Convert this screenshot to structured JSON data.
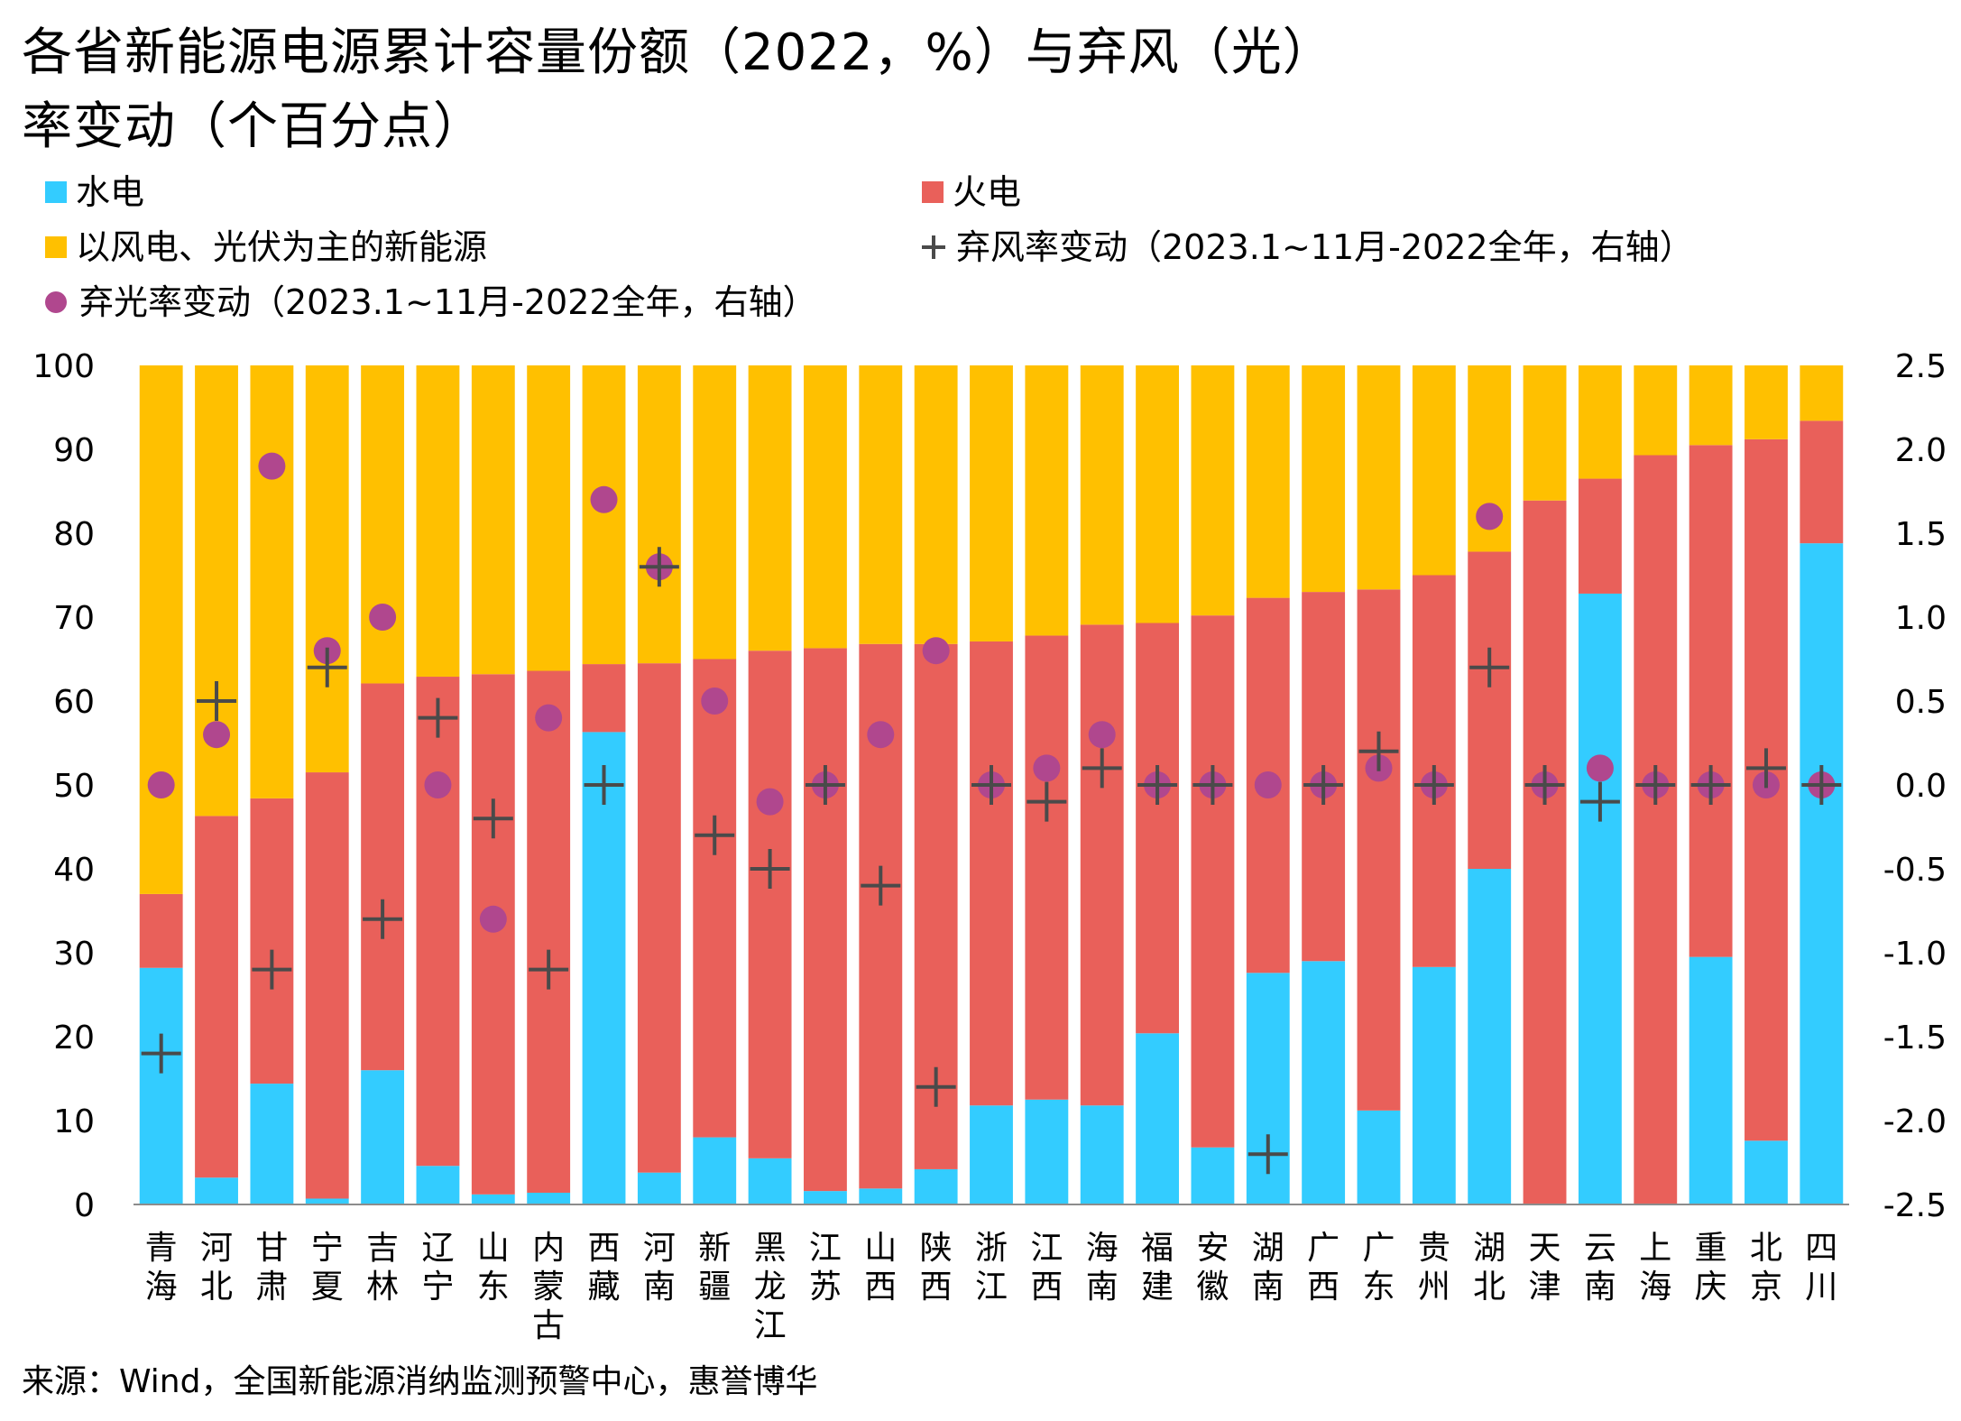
{
  "chart_data": {
    "type": "bar",
    "stacked": true,
    "title_line1": "各省新能源电源累计容量份额（2022，%）与弃风（光）",
    "title_line2": "率变动（个百分点）",
    "categories": [
      "青海",
      "河北",
      "甘肃",
      "宁夏",
      "吉林",
      "辽宁",
      "山东",
      "内蒙古",
      "西藏",
      "河南",
      "新疆",
      "黑龙江",
      "江苏",
      "山西",
      "陕西",
      "浙江",
      "江西",
      "海南",
      "福建",
      "安徽",
      "湖南",
      "广西",
      "广东",
      "贵州",
      "湖北",
      "天津",
      "云南",
      "上海",
      "重庆",
      "北京",
      "四川"
    ],
    "series": [
      {
        "name": "水电",
        "color": "#33CCFF",
        "values": [
          28.2,
          3.2,
          14.4,
          0.7,
          16.0,
          4.6,
          1.2,
          1.4,
          56.3,
          3.8,
          8.0,
          5.5,
          1.6,
          1.9,
          4.2,
          11.8,
          12.5,
          11.8,
          20.4,
          6.8,
          27.6,
          29.0,
          11.2,
          28.3,
          40.0,
          0.0,
          72.8,
          0.0,
          29.5,
          7.6,
          78.8
        ]
      },
      {
        "name": "火电",
        "color": "#E9605A",
        "values": [
          8.8,
          43.1,
          34.0,
          50.8,
          46.1,
          58.3,
          62.0,
          62.2,
          8.1,
          60.7,
          57.0,
          60.5,
          64.7,
          64.9,
          62.6,
          55.3,
          55.3,
          57.3,
          48.9,
          63.4,
          44.7,
          44.0,
          62.1,
          46.7,
          37.8,
          83.9,
          13.7,
          89.3,
          61.0,
          83.6,
          14.6
        ]
      },
      {
        "name": "以风电、光伏为主的新能源",
        "color": "#FFC000",
        "values": [
          63.0,
          53.7,
          51.6,
          48.5,
          37.9,
          37.1,
          36.8,
          36.4,
          35.6,
          35.5,
          35.0,
          34.0,
          33.7,
          33.2,
          33.2,
          32.9,
          32.2,
          30.9,
          30.7,
          29.8,
          27.7,
          27.0,
          26.7,
          25.0,
          22.2,
          16.1,
          13.5,
          10.7,
          9.5,
          8.8,
          6.6
        ]
      }
    ],
    "wind_change": {
      "name": "弃风率变动（2023.1~11月-2022全年，右轴）",
      "color": "#4A4A4A",
      "values": [
        -1.6,
        0.5,
        -1.1,
        0.7,
        -0.8,
        0.4,
        -0.2,
        -1.1,
        0.0,
        1.3,
        -0.3,
        -0.5,
        0.0,
        -0.6,
        -1.8,
        0.0,
        -0.1,
        0.1,
        0.0,
        0.0,
        -2.2,
        0.0,
        0.2,
        0.0,
        0.7,
        0.0,
        -0.1,
        0.0,
        0.0,
        0.1,
        0.0
      ]
    },
    "solar_change": {
      "name": "弃光率变动（2023.1~11月-2022全年，右轴）",
      "color": "#B0478E",
      "values": [
        0.0,
        0.3,
        1.9,
        0.8,
        1.0,
        0.0,
        -0.8,
        0.4,
        1.7,
        1.3,
        0.5,
        -0.1,
        0.0,
        0.3,
        0.8,
        0.0,
        0.1,
        0.3,
        0.0,
        0.0,
        0.0,
        0.0,
        0.1,
        0.0,
        1.6,
        0.0,
        0.1,
        0.0,
        0.0,
        0.0,
        0.0
      ]
    },
    "y_left": {
      "min": 0,
      "max": 100,
      "ticks": [
        "0",
        "10",
        "20",
        "30",
        "40",
        "50",
        "60",
        "70",
        "80",
        "90",
        "100"
      ]
    },
    "y_right": {
      "min": -2.5,
      "max": 2.5,
      "ticks": [
        "-2.5",
        "-2.0",
        "-1.5",
        "-1.0",
        "-0.5",
        "0.0",
        "0.5",
        "1.0",
        "1.5",
        "2.0",
        "2.5"
      ]
    },
    "legend": [
      {
        "label": "水电",
        "color": "#33CCFF",
        "kind": "square"
      },
      {
        "label": "火电",
        "color": "#E9605A",
        "kind": "square"
      },
      {
        "label": "以风电、光伏为主的新能源",
        "color": "#FFC000",
        "kind": "square"
      },
      {
        "label": "弃风率变动（2023.1~11月-2022全年，右轴）",
        "color": "#4A4A4A",
        "kind": "plus"
      },
      {
        "label": "弃光率变动（2023.1~11月-2022全年，右轴）",
        "color": "#B0478E",
        "kind": "dot"
      }
    ],
    "source": "来源：Wind，全国新能源消纳监测预警中心，惠誉博华",
    "grid": false
  }
}
